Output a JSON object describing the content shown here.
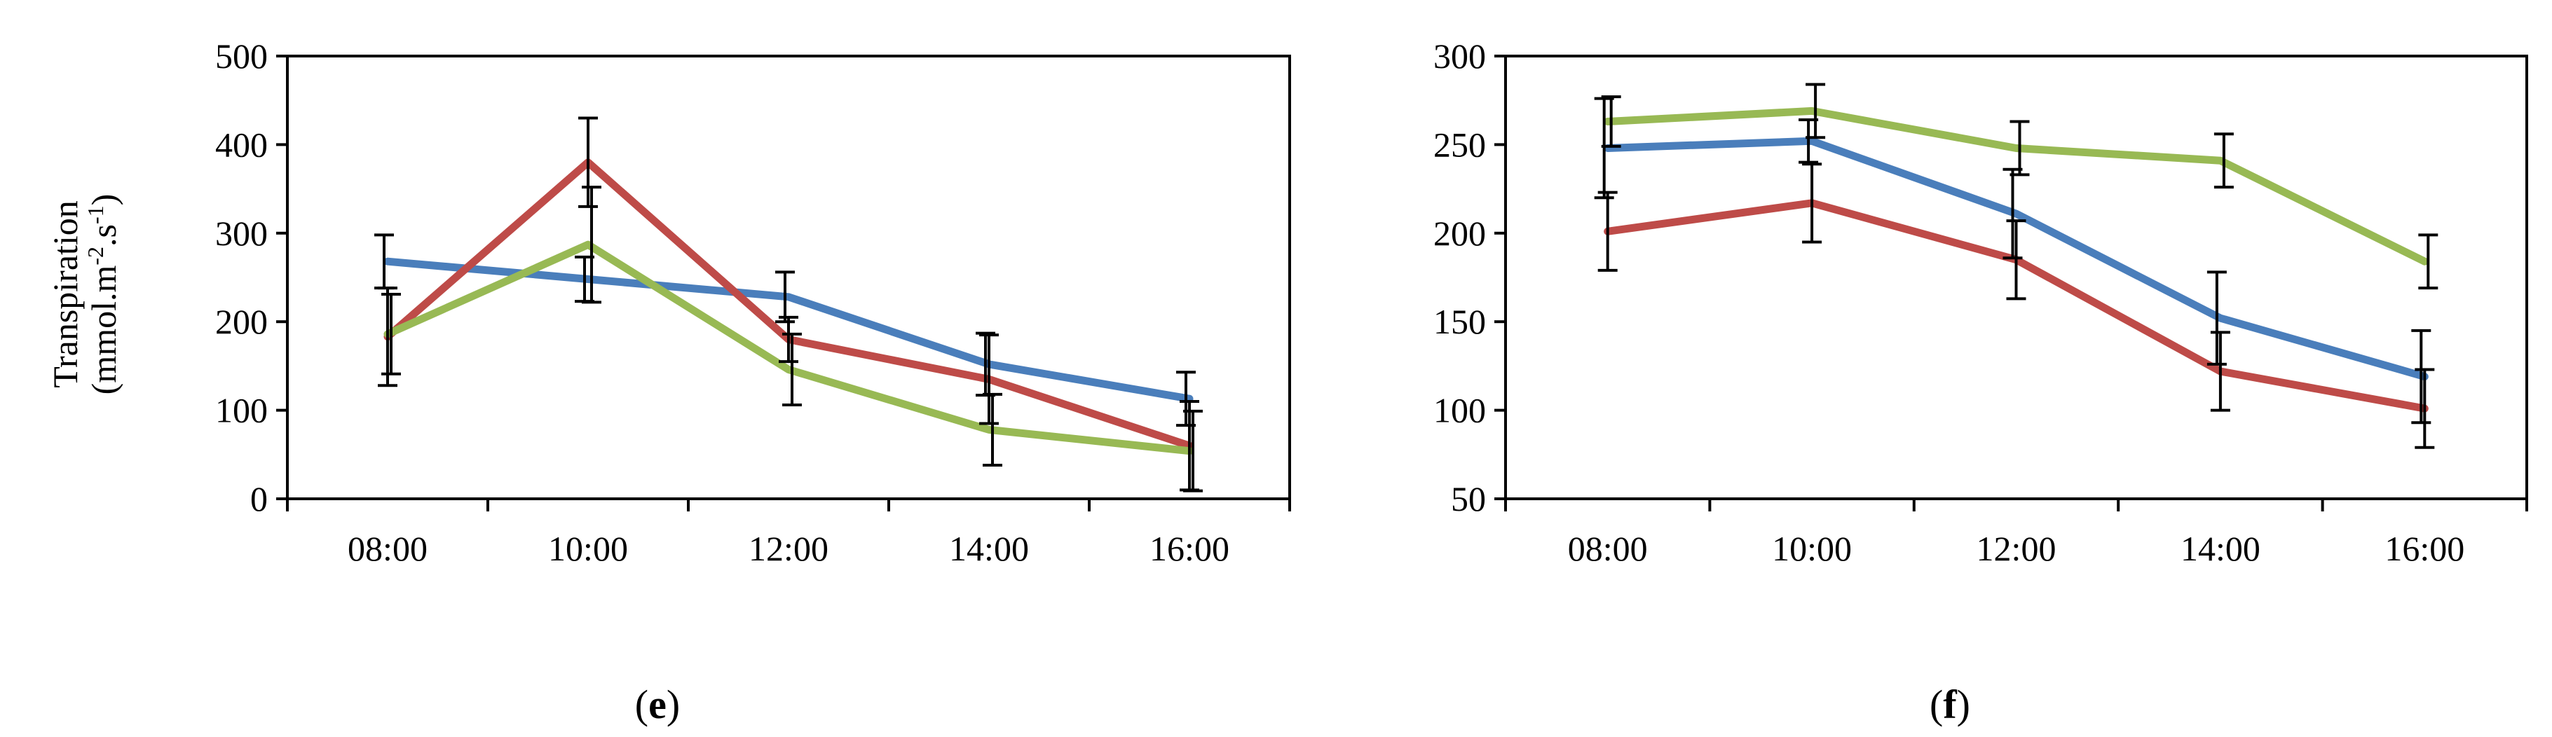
{
  "chart_data": [
    {
      "type": "line",
      "panel_label": "e",
      "ylabel": "Transpiration",
      "ylabel_unit": {
        "pre": "(mmol.m",
        "sup1": "-2",
        "mid": ".s",
        "sup2": "-1",
        "post": ")"
      },
      "categories": [
        "08:00",
        "10:00",
        "12:00",
        "14:00",
        "16:00"
      ],
      "ylim": [
        0,
        500
      ],
      "yticks": [
        0,
        100,
        200,
        300,
        400,
        500
      ],
      "grid": false,
      "series": [
        {
          "color": "#4a7ebb",
          "values": [
            268,
            248,
            228,
            152,
            113
          ],
          "errors": [
            30,
            25,
            28,
            35,
            30
          ]
        },
        {
          "color": "#be4b48",
          "values": [
            183,
            380,
            180,
            135,
            60
          ],
          "errors": [
            55,
            50,
            25,
            50,
            50
          ]
        },
        {
          "color": "#98b954",
          "values": [
            186,
            287,
            146,
            78,
            54
          ],
          "errors": [
            45,
            65,
            40,
            40,
            45
          ]
        }
      ]
    },
    {
      "type": "line",
      "panel_label": "f",
      "categories": [
        "08:00",
        "10:00",
        "12:00",
        "14:00",
        "16:00"
      ],
      "ylim": [
        50,
        300
      ],
      "yticks": [
        50,
        100,
        150,
        200,
        250,
        300
      ],
      "grid": false,
      "series": [
        {
          "color": "#4a7ebb",
          "values": [
            248,
            252,
            211,
            152,
            119
          ],
          "errors": [
            28,
            12,
            25,
            26,
            26
          ]
        },
        {
          "color": "#be4b48",
          "values": [
            201,
            217,
            185,
            122,
            101
          ],
          "errors": [
            22,
            22,
            22,
            22,
            22
          ]
        },
        {
          "color": "#98b954",
          "values": [
            263,
            269,
            248,
            241,
            184
          ],
          "errors": [
            14,
            15,
            15,
            15,
            15
          ]
        }
      ]
    }
  ]
}
